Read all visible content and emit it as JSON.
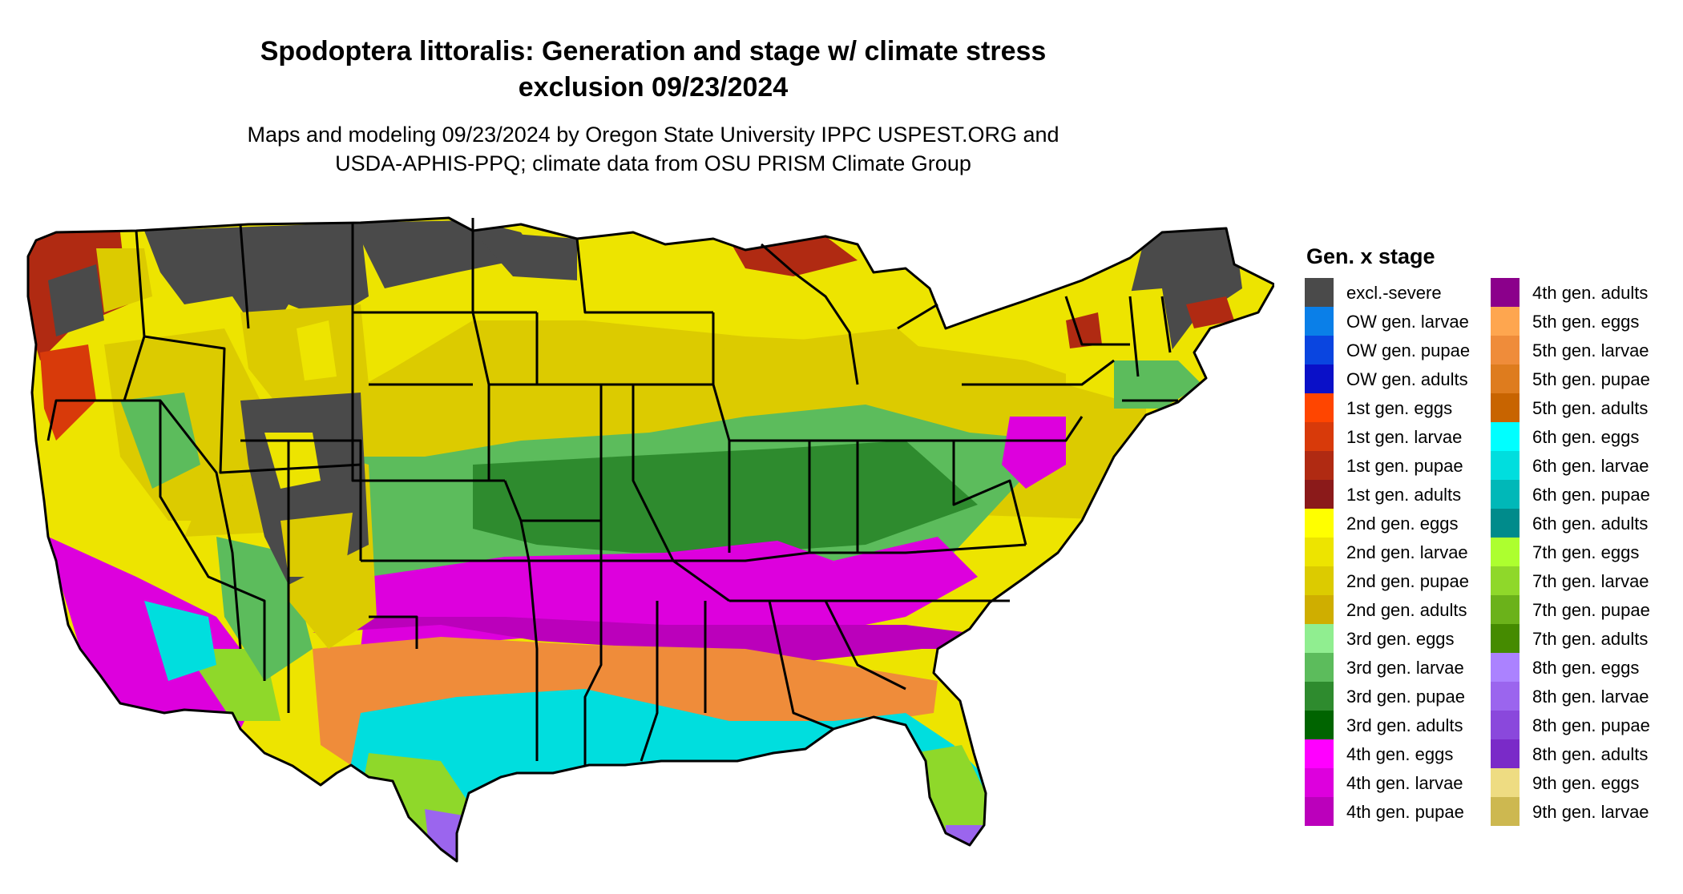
{
  "title_line1": "Spodoptera littoralis: Generation and stage w/ climate stress",
  "title_line2": "exclusion 09/23/2024",
  "subtitle_line1": "Maps and modeling 09/23/2024 by Oregon State University IPPC USPEST.ORG and",
  "subtitle_line2": "USDA-APHIS-PPQ; climate data from OSU PRISM Climate Group",
  "legend": {
    "title": "Gen. x stage",
    "items": [
      {
        "label": "excl.-severe",
        "color": "#4a4a4a"
      },
      {
        "label": "OW gen. larvae",
        "color": "#0a7fe8"
      },
      {
        "label": "OW gen. pupae",
        "color": "#0a45e0"
      },
      {
        "label": "OW gen. adults",
        "color": "#0a10c8"
      },
      {
        "label": "1st gen. eggs",
        "color": "#ff4500"
      },
      {
        "label": "1st gen. larvae",
        "color": "#d83a0a"
      },
      {
        "label": "1st gen. pupae",
        "color": "#b02a12"
      },
      {
        "label": "1st gen. adults",
        "color": "#8b1a1a"
      },
      {
        "label": "2nd gen. eggs",
        "color": "#ffff00"
      },
      {
        "label": "2nd gen. larvae",
        "color": "#ede400"
      },
      {
        "label": "2nd gen. pupae",
        "color": "#dccb00"
      },
      {
        "label": "2nd gen. adults",
        "color": "#cfae00"
      },
      {
        "label": "3rd gen. eggs",
        "color": "#90ee90"
      },
      {
        "label": "3rd gen. larvae",
        "color": "#5cbc5c"
      },
      {
        "label": "3rd gen. pupae",
        "color": "#2e8b2e"
      },
      {
        "label": "3rd gen. adults",
        "color": "#006400"
      },
      {
        "label": "4th gen. eggs",
        "color": "#ff00ff"
      },
      {
        "label": "4th gen. larvae",
        "color": "#dd00dd"
      },
      {
        "label": "4th gen. pupae",
        "color": "#bb00bb"
      },
      {
        "label": "4th gen. adults",
        "color": "#8b008b"
      },
      {
        "label": "5th gen. eggs",
        "color": "#fea64f"
      },
      {
        "label": "5th gen. larvae",
        "color": "#ef8c3a"
      },
      {
        "label": "5th gen. pupae",
        "color": "#de7c1e"
      },
      {
        "label": "5th gen. adults",
        "color": "#c86400"
      },
      {
        "label": "6th gen. eggs",
        "color": "#00ffff"
      },
      {
        "label": "6th gen. larvae",
        "color": "#00dede"
      },
      {
        "label": "6th gen. pupae",
        "color": "#00b8b8"
      },
      {
        "label": "6th gen. adults",
        "color": "#008b8b"
      },
      {
        "label": "7th gen. eggs",
        "color": "#adff2f"
      },
      {
        "label": "7th gen. larvae",
        "color": "#8fd82a"
      },
      {
        "label": "7th gen. pupae",
        "color": "#6bb21a"
      },
      {
        "label": "7th gen. adults",
        "color": "#458b00"
      },
      {
        "label": "8th gen. eggs",
        "color": "#ab82ff"
      },
      {
        "label": "8th gen. larvae",
        "color": "#9b65ee"
      },
      {
        "label": "8th gen. pupae",
        "color": "#8a48dc"
      },
      {
        "label": "8th gen. adults",
        "color": "#7a2ac8"
      },
      {
        "label": "9th gen. eggs",
        "color": "#eedc82"
      },
      {
        "label": "9th gen. larvae",
        "color": "#cdb850"
      }
    ]
  }
}
